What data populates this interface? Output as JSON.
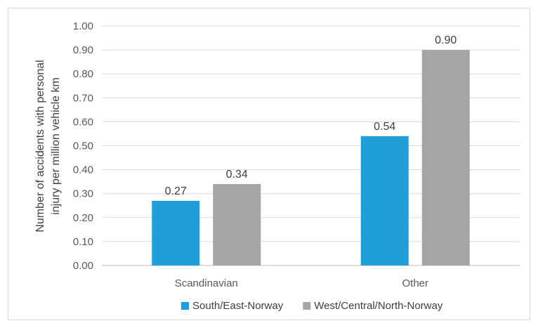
{
  "chart_data": {
    "type": "bar",
    "title": "",
    "ylabel_lines": [
      "Number of accidents with personal",
      "injury per million vehicle km"
    ],
    "ylim": [
      0,
      1.0
    ],
    "ytick_step": 0.1,
    "yticks": [
      "0.00",
      "0.10",
      "0.20",
      "0.30",
      "0.40",
      "0.50",
      "0.60",
      "0.70",
      "0.80",
      "0.90",
      "1.00"
    ],
    "categories": [
      "Scandinavian",
      "Other"
    ],
    "series": [
      {
        "name": "South/East-Norway",
        "color": "#1f9ed8",
        "values": [
          0.27,
          0.54
        ],
        "labels": [
          "0.27",
          "0.54"
        ]
      },
      {
        "name": "West/Central/North-Norway",
        "color": "#a5a5a5",
        "values": [
          0.34,
          0.9
        ],
        "labels": [
          "0.34",
          "0.90"
        ]
      }
    ],
    "grid": true,
    "legend_position": "bottom"
  }
}
